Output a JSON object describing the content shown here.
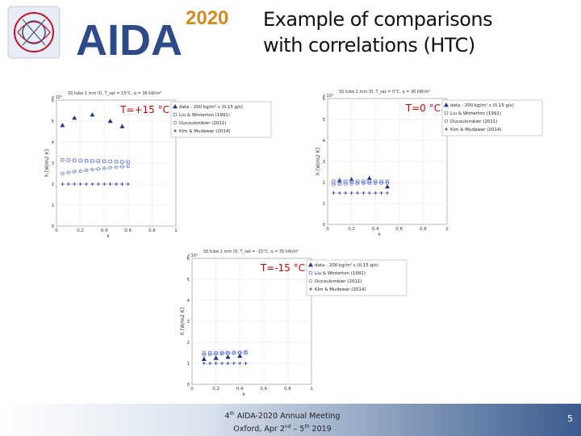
{
  "header": {
    "logo_text": "AIDA",
    "logo_year": "2020",
    "title_line1": "Example of comparisons",
    "title_line2": "with correlations (HTC)"
  },
  "footer": {
    "meeting_prefix": "4",
    "meeting_sup": "th",
    "meeting_rest": " AIDA-2020 Annual Meeting",
    "location_prefix": "Oxford, Apr 2",
    "location_sup1": "nd",
    "location_mid": " – 5",
    "location_sup2": "th",
    "location_rest": " 2019",
    "page_number": "5"
  },
  "colors": {
    "series_dark": "#1f2f8f",
    "series_light": "#6b7fd6",
    "annotation_red": "#d40000"
  },
  "chart_data": [
    {
      "type": "scatter",
      "subtitle": "SS tube 1 mm ID, T_sat = 15°C, q = 36 kW/m²",
      "annotation": "T=+15 °C",
      "xlabel": "x",
      "ylabel": "h [W/m2 K]",
      "y_multiplier": "x 10⁴",
      "xlim": [
        0,
        1
      ],
      "ylim": [
        0,
        6
      ],
      "xticks": [
        "0",
        "0.2",
        "0.4",
        "0.6",
        "0.8",
        "1"
      ],
      "yticks": [
        "0",
        "1",
        "2",
        "3",
        "4",
        "5",
        "6"
      ],
      "legend": [
        "data : 200 kg/m² s  (0.15 g/s)",
        "Liu & Winterton (1991)",
        "Ducoulombier (2011)",
        "Kim & Mudawar (2014)"
      ],
      "series": [
        {
          "name": "data : 200 kg/m² s  (0.15 g/s)",
          "marker": "triangle",
          "x": [
            0.05,
            0.15,
            0.3,
            0.45,
            0.55
          ],
          "y": [
            4.8,
            5.15,
            5.3,
            5.0,
            4.75
          ]
        },
        {
          "name": "Liu & Winterton (1991)",
          "marker": "square",
          "x": [
            0.05,
            0.1,
            0.15,
            0.2,
            0.25,
            0.3,
            0.35,
            0.4,
            0.45,
            0.5,
            0.55,
            0.6
          ],
          "y": [
            3.15,
            3.14,
            3.13,
            3.12,
            3.11,
            3.1,
            3.1,
            3.09,
            3.08,
            3.07,
            3.06,
            3.05
          ]
        },
        {
          "name": "Ducoulombier (2011)",
          "marker": "circle",
          "x": [
            0.05,
            0.1,
            0.15,
            0.2,
            0.25,
            0.3,
            0.35,
            0.4,
            0.45,
            0.5,
            0.55,
            0.6
          ],
          "y": [
            2.5,
            2.55,
            2.6,
            2.62,
            2.65,
            2.7,
            2.72,
            2.75,
            2.78,
            2.8,
            2.83,
            2.85
          ]
        },
        {
          "name": "Kim & Mudawar (2014)",
          "marker": "plus",
          "x": [
            0.05,
            0.1,
            0.15,
            0.2,
            0.25,
            0.3,
            0.35,
            0.4,
            0.45,
            0.5,
            0.55,
            0.6
          ],
          "y": [
            2.0,
            2.0,
            2.0,
            2.0,
            2.0,
            2.0,
            2.0,
            2.0,
            2.0,
            2.0,
            2.0,
            2.0
          ]
        }
      ]
    },
    {
      "type": "scatter",
      "subtitle": "SS tube 1 mm ID, T_sat = 0°C, q = 36 kW/m²",
      "annotation": "T=0 °C",
      "xlabel": "x",
      "ylabel": "h [W/m2 K]",
      "y_multiplier": "x 10⁴",
      "xlim": [
        0,
        1
      ],
      "ylim": [
        0,
        6
      ],
      "xticks": [
        "0",
        "0.2",
        "0.4",
        "0.6",
        "0.8",
        "1"
      ],
      "yticks": [
        "0",
        "1",
        "2",
        "3",
        "4",
        "5",
        "6"
      ],
      "legend": [
        "data : 200 kg/m² s  (0.15 g/s)",
        "Liu & Winterton (1991)",
        "Ducoulombier (2011)",
        "Kim & Mudawar (2014)"
      ],
      "series": [
        {
          "name": "data : 200 kg/m² s  (0.15 g/s)",
          "marker": "triangle",
          "x": [
            0.1,
            0.2,
            0.35,
            0.5
          ],
          "y": [
            2.1,
            2.15,
            2.2,
            1.8
          ]
        },
        {
          "name": "Liu & Winterton (1991)",
          "marker": "square",
          "x": [
            0.05,
            0.1,
            0.15,
            0.2,
            0.25,
            0.3,
            0.35,
            0.4,
            0.45,
            0.5
          ],
          "y": [
            2.05,
            2.05,
            2.05,
            2.05,
            2.05,
            2.05,
            2.05,
            2.05,
            2.05,
            2.05
          ]
        },
        {
          "name": "Ducoulombier (2011)",
          "marker": "circle",
          "x": [
            0.05,
            0.1,
            0.15,
            0.2,
            0.25,
            0.3,
            0.35,
            0.4,
            0.45,
            0.5
          ],
          "y": [
            1.9,
            1.92,
            1.93,
            1.94,
            1.95,
            1.96,
            1.96,
            1.97,
            1.97,
            1.98
          ]
        },
        {
          "name": "Kim & Mudawar (2014)",
          "marker": "plus",
          "x": [
            0.05,
            0.1,
            0.15,
            0.2,
            0.25,
            0.3,
            0.35,
            0.4,
            0.45,
            0.5
          ],
          "y": [
            1.5,
            1.5,
            1.5,
            1.5,
            1.5,
            1.5,
            1.5,
            1.5,
            1.5,
            1.5
          ]
        }
      ]
    },
    {
      "type": "scatter",
      "subtitle": "SS tube 1 mm ID, T_sat = -15°C, q = 35 kW/m²",
      "annotation": "T=-15 °C",
      "xlabel": "x",
      "ylabel": "h [W/m2 K]",
      "y_multiplier": "x 10⁴",
      "xlim": [
        0,
        1
      ],
      "ylim": [
        0,
        6
      ],
      "xticks": [
        "0",
        "0.2",
        "0.4",
        "0.6",
        "0.8",
        "1"
      ],
      "yticks": [
        "0",
        "1",
        "2",
        "3",
        "4",
        "5",
        "6"
      ],
      "legend": [
        "data : 200 kg/m² s  (0.15 g/s)",
        "Liu & Winterton (1991)",
        "Ducoulombier (2011)",
        "Kim & Mudawar (2014)"
      ],
      "series": [
        {
          "name": "data : 200 kg/m² s  (0.15 g/s)",
          "marker": "triangle",
          "x": [
            0.1,
            0.2,
            0.3,
            0.4
          ],
          "y": [
            1.2,
            1.25,
            1.3,
            1.35
          ]
        },
        {
          "name": "Liu & Winterton (1991)",
          "marker": "square",
          "x": [
            0.1,
            0.15,
            0.2,
            0.25,
            0.3,
            0.35,
            0.4,
            0.45
          ],
          "y": [
            1.5,
            1.5,
            1.5,
            1.5,
            1.5,
            1.5,
            1.5,
            1.5
          ]
        },
        {
          "name": "Ducoulombier (2011)",
          "marker": "circle",
          "x": [
            0.1,
            0.15,
            0.2,
            0.25,
            0.3,
            0.35,
            0.4,
            0.45
          ],
          "y": [
            1.4,
            1.42,
            1.44,
            1.46,
            1.48,
            1.5,
            1.52,
            1.55
          ]
        },
        {
          "name": "Kim & Mudawar (2014)",
          "marker": "plus",
          "x": [
            0.1,
            0.15,
            0.2,
            0.25,
            0.3,
            0.35,
            0.4,
            0.45
          ],
          "y": [
            1.0,
            1.0,
            1.0,
            1.0,
            1.0,
            1.0,
            1.0,
            1.0
          ]
        }
      ]
    }
  ]
}
